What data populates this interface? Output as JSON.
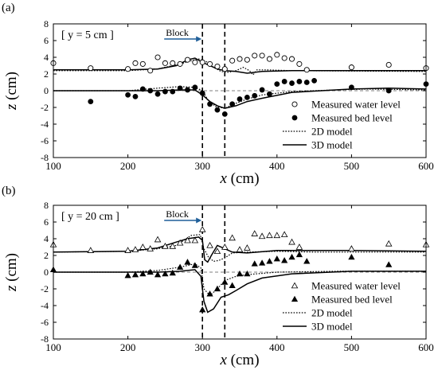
{
  "chart_data": [
    {
      "panel_label": "(a)",
      "location_label": "[ y = 5 cm ]",
      "block_label": "Block",
      "type": "line+scatter",
      "xlabel": "x (cm)",
      "ylabel": "z (cm)",
      "xlim": [
        100,
        600
      ],
      "ylim": [
        -8,
        8
      ],
      "xticks": [
        100,
        200,
        300,
        400,
        500,
        600
      ],
      "yticks": [
        -8,
        -6,
        -4,
        -2,
        0,
        2,
        4,
        6,
        8
      ],
      "block_lines_x": [
        300,
        330
      ],
      "zero_line": true,
      "legend_position": "bottom-right",
      "series": [
        {
          "name": "Measured water level",
          "kind": "scatter",
          "marker": "open-circle",
          "points": [
            [
              100,
              3.3
            ],
            [
              150,
              2.7
            ],
            [
              200,
              2.6
            ],
            [
              210,
              3.3
            ],
            [
              220,
              3.2
            ],
            [
              230,
              2.4
            ],
            [
              240,
              4.0
            ],
            [
              250,
              3.3
            ],
            [
              260,
              3.3
            ],
            [
              270,
              3.2
            ],
            [
              280,
              3.7
            ],
            [
              290,
              3.4
            ],
            [
              300,
              3.4
            ],
            [
              310,
              3.2
            ],
            [
              320,
              2.9
            ],
            [
              330,
              2.6
            ],
            [
              340,
              3.6
            ],
            [
              350,
              3.8
            ],
            [
              360,
              3.7
            ],
            [
              370,
              4.2
            ],
            [
              380,
              4.2
            ],
            [
              390,
              3.8
            ],
            [
              400,
              4.3
            ],
            [
              410,
              3.9
            ],
            [
              420,
              3.8
            ],
            [
              430,
              3.2
            ],
            [
              440,
              2.5
            ],
            [
              500,
              2.8
            ],
            [
              550,
              3.1
            ],
            [
              600,
              2.7
            ]
          ]
        },
        {
          "name": "Measured bed level",
          "kind": "scatter",
          "marker": "filled-circle",
          "points": [
            [
              150,
              -1.3
            ],
            [
              200,
              -0.5
            ],
            [
              210,
              -0.7
            ],
            [
              220,
              0.2
            ],
            [
              230,
              0.0
            ],
            [
              240,
              -0.4
            ],
            [
              250,
              -0.1
            ],
            [
              260,
              -0.1
            ],
            [
              270,
              0.3
            ],
            [
              280,
              0.1
            ],
            [
              290,
              0.4
            ],
            [
              300,
              -0.3
            ],
            [
              310,
              -1.6
            ],
            [
              320,
              -2.3
            ],
            [
              330,
              -2.8
            ],
            [
              340,
              -1.6
            ],
            [
              350,
              -1.0
            ],
            [
              360,
              -0.8
            ],
            [
              370,
              -0.6
            ],
            [
              380,
              0.1
            ],
            [
              390,
              -0.4
            ],
            [
              400,
              0.8
            ],
            [
              410,
              1.1
            ],
            [
              420,
              0.9
            ],
            [
              430,
              1.1
            ],
            [
              440,
              1.0
            ],
            [
              450,
              1.2
            ],
            [
              500,
              0.4
            ],
            [
              550,
              0.0
            ],
            [
              600,
              0.8
            ]
          ]
        },
        {
          "name": "2D model",
          "kind": "line",
          "dash": "dotted",
          "water": [
            [
              100,
              2.4
            ],
            [
              200,
              2.4
            ],
            [
              240,
              2.6
            ],
            [
              270,
              3.2
            ],
            [
              285,
              3.6
            ],
            [
              295,
              3.8
            ],
            [
              305,
              3.5
            ],
            [
              315,
              2.8
            ],
            [
              325,
              2.3
            ],
            [
              335,
              2.2
            ],
            [
              345,
              2.4
            ],
            [
              355,
              2.8
            ],
            [
              363,
              2.4
            ],
            [
              368,
              1.9
            ],
            [
              373,
              2.5
            ],
            [
              385,
              2.5
            ],
            [
              420,
              2.4
            ],
            [
              600,
              2.3
            ]
          ],
          "bed": [
            [
              100,
              0.0
            ],
            [
              200,
              0.0
            ],
            [
              240,
              0.3
            ],
            [
              270,
              0.5
            ],
            [
              290,
              0.4
            ],
            [
              300,
              0.0
            ],
            [
              308,
              -1.2
            ],
            [
              318,
              -1.9
            ],
            [
              330,
              -2.1
            ],
            [
              345,
              -1.5
            ],
            [
              360,
              -1.0
            ],
            [
              380,
              -0.5
            ],
            [
              420,
              -0.1
            ],
            [
              480,
              0.1
            ],
            [
              520,
              0.2
            ],
            [
              600,
              0.1
            ]
          ]
        },
        {
          "name": "3D model",
          "kind": "line",
          "dash": "solid",
          "water": [
            [
              100,
              2.5
            ],
            [
              200,
              2.5
            ],
            [
              240,
              2.6
            ],
            [
              265,
              3.0
            ],
            [
              280,
              3.7
            ],
            [
              290,
              3.9
            ],
            [
              300,
              3.4
            ],
            [
              310,
              3.0
            ],
            [
              320,
              2.6
            ],
            [
              330,
              2.4
            ],
            [
              345,
              2.3
            ],
            [
              360,
              2.1
            ],
            [
              380,
              2.3
            ],
            [
              420,
              2.4
            ],
            [
              500,
              2.4
            ],
            [
              600,
              2.4
            ]
          ],
          "bed": [
            [
              100,
              0.0
            ],
            [
              200,
              0.0
            ],
            [
              240,
              0.0
            ],
            [
              270,
              0.1
            ],
            [
              290,
              0.1
            ],
            [
              300,
              -0.5
            ],
            [
              310,
              -1.3
            ],
            [
              320,
              -1.8
            ],
            [
              330,
              -2.1
            ],
            [
              345,
              -1.8
            ],
            [
              360,
              -1.3
            ],
            [
              380,
              -0.9
            ],
            [
              420,
              -0.2
            ],
            [
              500,
              0.2
            ],
            [
              550,
              0.3
            ],
            [
              600,
              0.2
            ]
          ]
        }
      ]
    },
    {
      "panel_label": "(b)",
      "location_label": "[ y = 20 cm ]",
      "block_label": "Block",
      "type": "line+scatter",
      "xlabel": "x (cm)",
      "ylabel": "z (cm)",
      "xlim": [
        100,
        600
      ],
      "ylim": [
        -8,
        8
      ],
      "xticks": [
        100,
        200,
        300,
        400,
        500,
        600
      ],
      "yticks": [
        -8,
        -6,
        -4,
        -2,
        0,
        2,
        4,
        6,
        8
      ],
      "block_lines_x": [
        300,
        330
      ],
      "zero_line": true,
      "legend_position": "bottom-right",
      "series": [
        {
          "name": "Measured water level",
          "kind": "scatter",
          "marker": "open-triangle",
          "points": [
            [
              100,
              3.3
            ],
            [
              150,
              2.6
            ],
            [
              200,
              2.6
            ],
            [
              210,
              2.7
            ],
            [
              220,
              3.0
            ],
            [
              230,
              2.8
            ],
            [
              240,
              3.9
            ],
            [
              250,
              3.1
            ],
            [
              260,
              3.1
            ],
            [
              270,
              3.5
            ],
            [
              280,
              3.8
            ],
            [
              290,
              3.8
            ],
            [
              300,
              5.1
            ],
            [
              310,
              3.2
            ],
            [
              320,
              2.5
            ],
            [
              330,
              3.0
            ],
            [
              340,
              4.1
            ],
            [
              350,
              2.7
            ],
            [
              360,
              2.9
            ],
            [
              370,
              4.6
            ],
            [
              380,
              4.3
            ],
            [
              390,
              4.4
            ],
            [
              400,
              4.4
            ],
            [
              410,
              4.5
            ],
            [
              420,
              3.6
            ],
            [
              430,
              3.0
            ],
            [
              500,
              2.8
            ],
            [
              550,
              3.4
            ],
            [
              600,
              3.3
            ]
          ]
        },
        {
          "name": "Measured bed level",
          "kind": "scatter",
          "marker": "filled-triangle",
          "points": [
            [
              100,
              0.3
            ],
            [
              200,
              -0.4
            ],
            [
              210,
              -0.3
            ],
            [
              220,
              -0.2
            ],
            [
              230,
              0.0
            ],
            [
              240,
              -0.3
            ],
            [
              250,
              -0.2
            ],
            [
              260,
              -0.1
            ],
            [
              270,
              0.6
            ],
            [
              280,
              1.2
            ],
            [
              290,
              0.8
            ],
            [
              300,
              -4.5
            ],
            [
              310,
              -2.6
            ],
            [
              320,
              -2.0
            ],
            [
              330,
              -1.2
            ],
            [
              340,
              -1.6
            ],
            [
              350,
              -0.2
            ],
            [
              360,
              -0.2
            ],
            [
              370,
              1.0
            ],
            [
              380,
              1.1
            ],
            [
              390,
              1.3
            ],
            [
              400,
              1.6
            ],
            [
              410,
              1.4
            ],
            [
              420,
              1.8
            ],
            [
              430,
              2.1
            ],
            [
              440,
              1.3
            ],
            [
              500,
              1.8
            ],
            [
              550,
              0.9
            ]
          ]
        },
        {
          "name": "2D model",
          "kind": "line",
          "dash": "dotted",
          "water": [
            [
              100,
              2.4
            ],
            [
              200,
              2.5
            ],
            [
              240,
              2.8
            ],
            [
              265,
              3.2
            ],
            [
              285,
              4.4
            ],
            [
              297,
              4.5
            ],
            [
              302,
              2.8
            ],
            [
              308,
              1.8
            ],
            [
              315,
              1.3
            ],
            [
              322,
              1.4
            ],
            [
              330,
              1.7
            ],
            [
              340,
              2.3
            ],
            [
              360,
              2.4
            ],
            [
              400,
              2.5
            ],
            [
              450,
              2.4
            ],
            [
              600,
              2.4
            ]
          ],
          "bed": [
            [
              100,
              0.0
            ],
            [
              200,
              0.0
            ],
            [
              240,
              0.2
            ],
            [
              270,
              0.6
            ],
            [
              290,
              1.0
            ],
            [
              298,
              0.5
            ],
            [
              302,
              -2.0
            ],
            [
              310,
              -2.8
            ],
            [
              320,
              -2.0
            ],
            [
              330,
              -1.0
            ],
            [
              345,
              -0.5
            ],
            [
              360,
              -0.3
            ],
            [
              400,
              0.0
            ],
            [
              480,
              0.1
            ],
            [
              600,
              0.1
            ]
          ]
        },
        {
          "name": "3D model",
          "kind": "line",
          "dash": "solid",
          "water": [
            [
              100,
              2.4
            ],
            [
              200,
              2.5
            ],
            [
              240,
              2.9
            ],
            [
              265,
              3.6
            ],
            [
              280,
              4.0
            ],
            [
              295,
              4.2
            ],
            [
              300,
              3.8
            ],
            [
              303,
              1.5
            ],
            [
              307,
              1.2
            ],
            [
              312,
              2.0
            ],
            [
              320,
              3.2
            ],
            [
              330,
              2.8
            ],
            [
              340,
              2.4
            ],
            [
              360,
              2.3
            ],
            [
              400,
              2.6
            ],
            [
              450,
              2.6
            ],
            [
              500,
              2.6
            ],
            [
              600,
              2.5
            ]
          ],
          "bed": [
            [
              100,
              0.0
            ],
            [
              200,
              0.0
            ],
            [
              240,
              0.0
            ],
            [
              270,
              0.1
            ],
            [
              290,
              0.3
            ],
            [
              298,
              -0.5
            ],
            [
              302,
              -3.5
            ],
            [
              307,
              -4.8
            ],
            [
              315,
              -4.4
            ],
            [
              325,
              -3.0
            ],
            [
              335,
              -2.7
            ],
            [
              345,
              -2.2
            ],
            [
              360,
              -1.4
            ],
            [
              380,
              -0.7
            ],
            [
              420,
              -0.2
            ],
            [
              500,
              0.1
            ],
            [
              600,
              0.1
            ]
          ]
        }
      ]
    }
  ]
}
